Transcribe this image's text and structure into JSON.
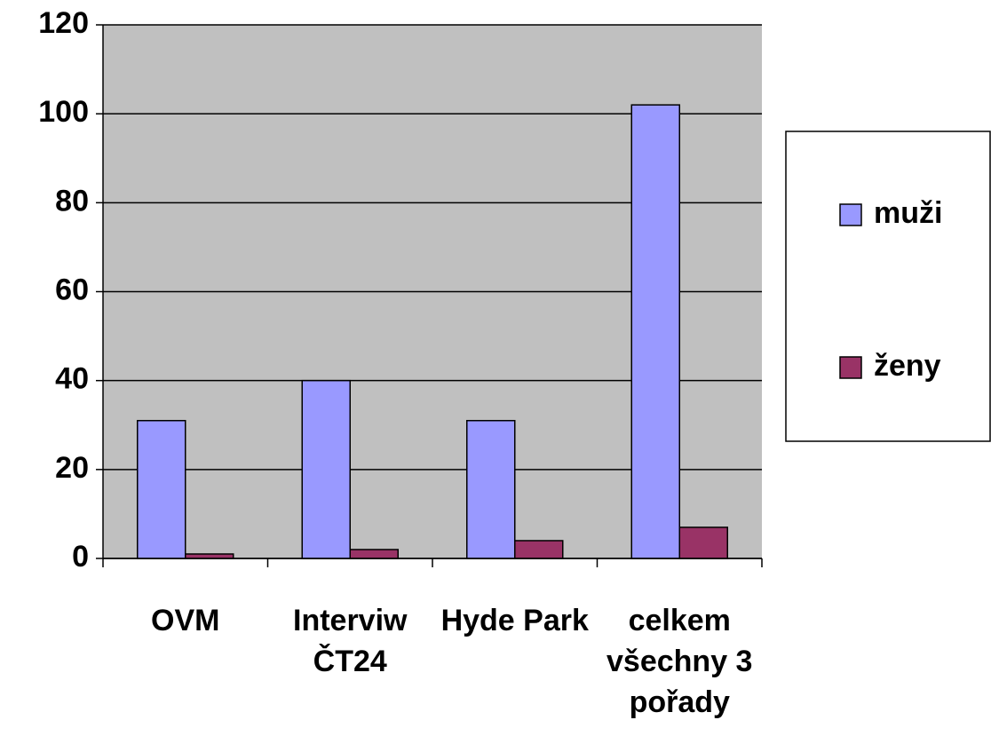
{
  "chart_data": {
    "type": "bar",
    "categories": [
      "OVM",
      "Interviw ČT24",
      "Hyde Park",
      "celkem všechny 3 pořady"
    ],
    "series": [
      {
        "name": "muži",
        "color": "#9999ff",
        "values": [
          31,
          40,
          31,
          102
        ]
      },
      {
        "name": "ženy",
        "color": "#993366",
        "values": [
          1,
          2,
          4,
          7
        ]
      }
    ],
    "ylim": [
      0,
      120
    ],
    "yticks": [
      0,
      20,
      40,
      60,
      80,
      100,
      120
    ],
    "grid": true,
    "legend": "right"
  }
}
